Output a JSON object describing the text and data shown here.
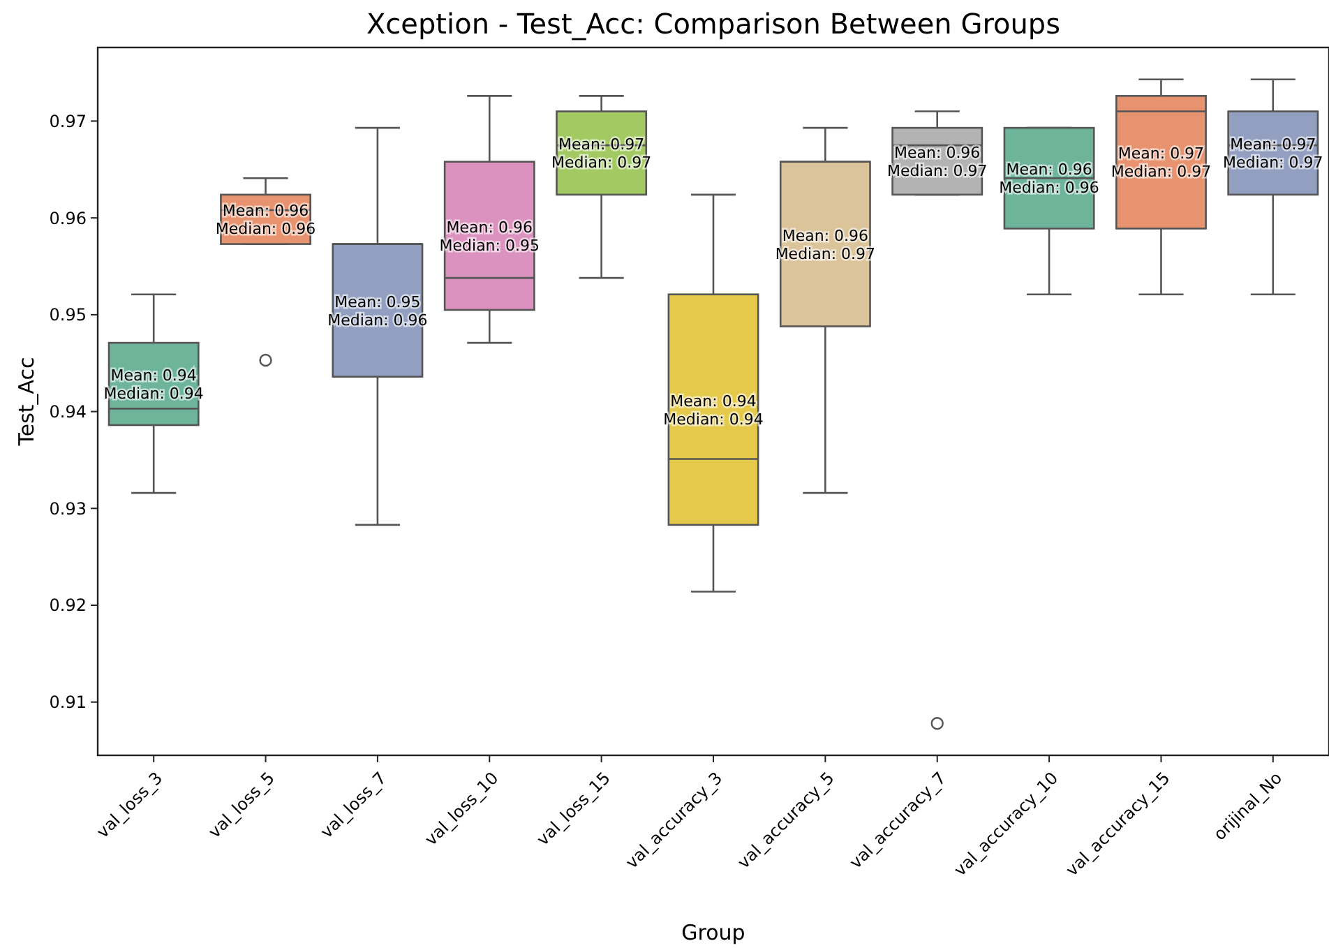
{
  "chart_data": {
    "type": "box",
    "title": "Xception - Test_Acc: Comparison Between Groups",
    "xlabel": "Group",
    "ylabel": "Test_Acc",
    "categories": [
      "val_loss_3",
      "val_loss_5",
      "val_loss_7",
      "val_loss_10",
      "val_loss_15",
      "val_accuracy_3",
      "val_accuracy_5",
      "val_accuracy_7",
      "val_accuracy_10",
      "val_accuracy_15",
      "orijinal_No"
    ],
    "colors": [
      "#6db49b",
      "#e8936f",
      "#929fc0",
      "#dc92bf",
      "#a3c962",
      "#e4c94a",
      "#dbc39a",
      "#b3b3b3",
      "#6db49b",
      "#e8936f",
      "#929fc0"
    ],
    "boxes": [
      {
        "low": 0.9316,
        "q1": 0.9386,
        "median": 0.9403,
        "q3": 0.9471,
        "high": 0.9521
      },
      {
        "low": 0.9573,
        "q1": 0.9573,
        "median": 0.9608,
        "q3": 0.9624,
        "high": 0.9641,
        "outliers": [
          0.9453
        ]
      },
      {
        "low": 0.9283,
        "q1": 0.9436,
        "median": 0.9573,
        "q3": 0.9573,
        "high": 0.9693
      },
      {
        "low": 0.9471,
        "q1": 0.9505,
        "median": 0.9538,
        "q3": 0.9658,
        "high": 0.9726
      },
      {
        "low": 0.9538,
        "q1": 0.9624,
        "median": 0.9675,
        "q3": 0.971,
        "high": 0.9726
      },
      {
        "low": 0.9214,
        "q1": 0.9283,
        "median": 0.9351,
        "q3": 0.9521,
        "high": 0.9624
      },
      {
        "low": 0.9316,
        "q1": 0.9488,
        "median": 0.9658,
        "q3": 0.9658,
        "high": 0.9693
      },
      {
        "low": 0.9624,
        "q1": 0.9624,
        "median": 0.9675,
        "q3": 0.9693,
        "high": 0.971,
        "outliers": [
          0.9078
        ]
      },
      {
        "low": 0.9521,
        "q1": 0.9589,
        "median": 0.9641,
        "q3": 0.9693,
        "high": 0.9693
      },
      {
        "low": 0.9521,
        "q1": 0.9589,
        "median": 0.971,
        "q3": 0.9726,
        "high": 0.9743
      },
      {
        "low": 0.9521,
        "q1": 0.9624,
        "median": 0.9675,
        "q3": 0.971,
        "high": 0.9743
      }
    ],
    "ylim": [
      0.9045,
      0.9776
    ],
    "yticks": [
      0.91,
      0.92,
      0.93,
      0.94,
      0.95,
      0.96,
      0.97
    ],
    "grid": false,
    "annotations": [
      "Mean: 0.94\nMedian: 0.94",
      "Mean: 0.96\nMedian: 0.96",
      "Mean: 0.95\nMedian: 0.96",
      "Mean: 0.96\nMedian: 0.95",
      "Mean: 0.97\nMedian: 0.97",
      "Mean: 0.94\nMedian: 0.94",
      "Mean: 0.96\nMedian: 0.97",
      "Mean: 0.96\nMedian: 0.97",
      "Mean: 0.96\nMedian: 0.96",
      "Mean: 0.97\nMedian: 0.97",
      "Mean: 0.97\nMedian: 0.97"
    ]
  }
}
